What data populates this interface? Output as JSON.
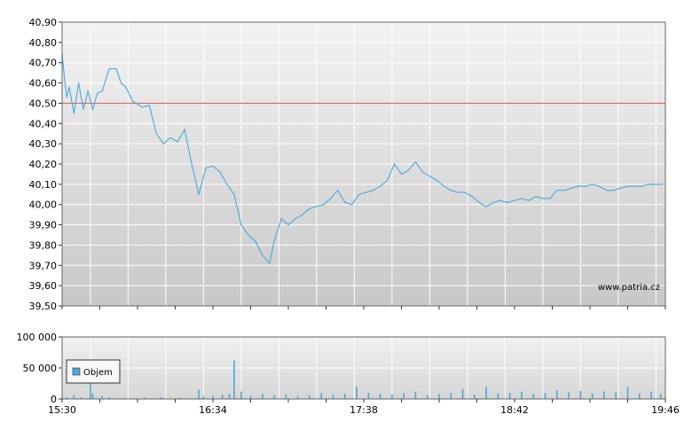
{
  "chart_data": [
    {
      "type": "line",
      "ylim": [
        39.5,
        40.9
      ],
      "y_ticks": [
        "40,90",
        "40,80",
        "40,70",
        "40,60",
        "40,50",
        "40,40",
        "40,30",
        "40,20",
        "40,10",
        "40,00",
        "39,90",
        "39,80",
        "39,70",
        "39,60",
        "39,50"
      ],
      "y_tick_values": [
        40.9,
        40.8,
        40.7,
        40.6,
        40.5,
        40.4,
        40.3,
        40.2,
        40.1,
        40.0,
        39.9,
        39.8,
        39.7,
        39.6,
        39.5
      ],
      "reference_line": {
        "value": 40.5,
        "color": "#e06666"
      },
      "watermark": "www.patria.cz",
      "line_color": "#4aa8d8",
      "grid": true,
      "x": [
        "15:30",
        "15:31",
        "15:32",
        "15:33",
        "15:35",
        "15:37",
        "15:39",
        "15:41",
        "15:43",
        "15:45",
        "15:47",
        "15:50",
        "15:53",
        "15:55",
        "15:57",
        "16:00",
        "16:04",
        "16:07",
        "16:10",
        "16:13",
        "16:16",
        "16:19",
        "16:22",
        "16:25",
        "16:28",
        "16:31",
        "16:34",
        "16:37",
        "16:40",
        "16:43",
        "16:46",
        "16:49",
        "16:52",
        "16:55",
        "16:58",
        "17:00",
        "17:03",
        "17:06",
        "17:09",
        "17:12",
        "17:15",
        "17:18",
        "17:21",
        "17:24",
        "17:27",
        "17:30",
        "17:33",
        "17:36",
        "17:39",
        "17:42",
        "17:45",
        "17:48",
        "17:51",
        "17:54",
        "17:57",
        "18:00",
        "18:03",
        "18:06",
        "18:09",
        "18:12",
        "18:15",
        "18:18",
        "18:21",
        "18:24",
        "18:27",
        "18:30",
        "18:33",
        "18:36",
        "18:39",
        "18:42",
        "18:45",
        "18:48",
        "18:51",
        "18:54",
        "18:57",
        "19:00",
        "19:03",
        "19:06",
        "19:09",
        "19:12",
        "19:15",
        "19:18",
        "19:21",
        "19:24",
        "19:27",
        "19:30",
        "19:33",
        "19:36",
        "19:39",
        "19:42",
        "19:45"
      ],
      "values": [
        40.75,
        40.62,
        40.53,
        40.58,
        40.45,
        40.6,
        40.47,
        40.56,
        40.47,
        40.55,
        40.56,
        40.67,
        40.67,
        40.6,
        40.58,
        40.51,
        40.48,
        40.49,
        40.35,
        40.3,
        40.33,
        40.31,
        40.37,
        40.2,
        40.05,
        40.18,
        40.19,
        40.16,
        40.1,
        40.05,
        39.9,
        39.85,
        39.82,
        39.75,
        39.71,
        39.82,
        39.93,
        39.9,
        39.93,
        39.95,
        39.98,
        39.99,
        40.0,
        40.03,
        40.07,
        40.01,
        40.0,
        40.05,
        40.06,
        40.07,
        40.09,
        40.12,
        40.2,
        40.15,
        40.17,
        40.21,
        40.16,
        40.14,
        40.12,
        40.09,
        40.07,
        40.06,
        40.06,
        40.04,
        40.01,
        39.99,
        40.01,
        40.02,
        40.01,
        40.02,
        40.03,
        40.02,
        40.04,
        40.03,
        40.03,
        40.07,
        40.07,
        40.08,
        40.09,
        40.09,
        40.1,
        40.09,
        40.07,
        40.07,
        40.08,
        40.09,
        40.09,
        40.09,
        40.1,
        40.1,
        40.1
      ]
    },
    {
      "type": "bar",
      "ylim": [
        0,
        100000
      ],
      "y_ticks": [
        "100 000",
        "50 000",
        "0"
      ],
      "y_tick_values": [
        100000,
        50000,
        0
      ],
      "x_ticks": [
        "15:30",
        "16:34",
        "17:38",
        "18:42",
        "19:46"
      ],
      "x_tick_minutes": [
        0,
        64,
        128,
        192,
        256
      ],
      "legend": "Objem",
      "legend_position": "bottom-left",
      "bar_color": "#4aa8d8",
      "bars": [
        {
          "t": 2,
          "v": 3000
        },
        {
          "t": 5,
          "v": 6000
        },
        {
          "t": 8,
          "v": 3000
        },
        {
          "t": 12,
          "v": 30000
        },
        {
          "t": 13,
          "v": 9000
        },
        {
          "t": 17,
          "v": 5000
        },
        {
          "t": 20,
          "v": 3000
        },
        {
          "t": 26,
          "v": 2000
        },
        {
          "t": 35,
          "v": 2500
        },
        {
          "t": 42,
          "v": 3000
        },
        {
          "t": 50,
          "v": 2000
        },
        {
          "t": 58,
          "v": 15000
        },
        {
          "t": 60,
          "v": 4000
        },
        {
          "t": 64,
          "v": 5000
        },
        {
          "t": 68,
          "v": 7000
        },
        {
          "t": 71,
          "v": 8000
        },
        {
          "t": 73,
          "v": 62000
        },
        {
          "t": 76,
          "v": 12000
        },
        {
          "t": 80,
          "v": 5000
        },
        {
          "t": 85,
          "v": 8000
        },
        {
          "t": 90,
          "v": 6000
        },
        {
          "t": 95,
          "v": 7000
        },
        {
          "t": 100,
          "v": 5000
        },
        {
          "t": 105,
          "v": 6000
        },
        {
          "t": 110,
          "v": 9000
        },
        {
          "t": 115,
          "v": 7000
        },
        {
          "t": 120,
          "v": 8000
        },
        {
          "t": 125,
          "v": 20000
        },
        {
          "t": 130,
          "v": 10000
        },
        {
          "t": 135,
          "v": 8000
        },
        {
          "t": 140,
          "v": 7000
        },
        {
          "t": 145,
          "v": 9000
        },
        {
          "t": 150,
          "v": 12000
        },
        {
          "t": 155,
          "v": 6000
        },
        {
          "t": 160,
          "v": 8000
        },
        {
          "t": 165,
          "v": 10000
        },
        {
          "t": 170,
          "v": 16000
        },
        {
          "t": 175,
          "v": 7000
        },
        {
          "t": 180,
          "v": 20000
        },
        {
          "t": 185,
          "v": 9000
        },
        {
          "t": 190,
          "v": 10000
        },
        {
          "t": 195,
          "v": 12000
        },
        {
          "t": 200,
          "v": 8000
        },
        {
          "t": 205,
          "v": 10000
        },
        {
          "t": 210,
          "v": 14000
        },
        {
          "t": 215,
          "v": 11000
        },
        {
          "t": 220,
          "v": 13000
        },
        {
          "t": 225,
          "v": 9000
        },
        {
          "t": 230,
          "v": 12000
        },
        {
          "t": 235,
          "v": 11000
        },
        {
          "t": 240,
          "v": 20000
        },
        {
          "t": 245,
          "v": 9000
        },
        {
          "t": 250,
          "v": 12000
        },
        {
          "t": 254,
          "v": 8000
        }
      ]
    }
  ]
}
